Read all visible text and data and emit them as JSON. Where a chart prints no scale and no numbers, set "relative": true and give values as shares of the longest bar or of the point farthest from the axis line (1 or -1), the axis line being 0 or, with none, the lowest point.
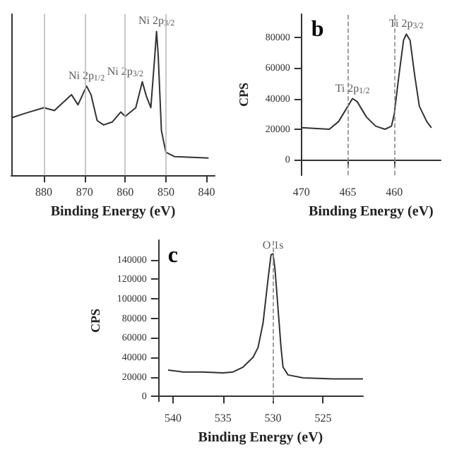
{
  "chart_data": [
    {
      "type": "line",
      "xlabel": "Binding Energy (eV)",
      "relative": true,
      "tick_labels": "x",
      "xlim": [
        888,
        838
      ],
      "xticks": [
        880,
        870,
        860,
        850,
        840
      ],
      "x": [
        887.9,
        884.7,
        880,
        877.4,
        873.2,
        871.6,
        869.5,
        868.4,
        866.9,
        865.3,
        863.2,
        861.1,
        860,
        857.4,
        855.8,
        854.8,
        853.7,
        852.7,
        852.3,
        851.9,
        851.1,
        850,
        847.9,
        839.5
      ],
      "series": [
        {
          "color": "#333333",
          "values": [
            0.4,
            0.43,
            0.47,
            0.45,
            0.56,
            0.49,
            0.62,
            0.56,
            0.38,
            0.35,
            0.37,
            0.44,
            0.41,
            0.47,
            0.65,
            0.55,
            0.47,
            0.84,
            1,
            0.84,
            0.31,
            0.16,
            0.13,
            0.12
          ]
        }
      ],
      "ref_lines": [
        {
          "axis": "x",
          "value": 880,
          "color": "#bbbbbb",
          "line_style": "solid"
        },
        {
          "axis": "x",
          "value": 870,
          "color": "#bbbbbb",
          "line_style": "solid"
        },
        {
          "axis": "x",
          "value": 860,
          "color": "#bbbbbb",
          "line_style": "solid"
        },
        {
          "axis": "x",
          "value": 850,
          "color": "#bbbbbb",
          "line_style": "solid"
        }
      ],
      "annotations": [
        {
          "text": "Ni 2p$_{1/2}$",
          "x": 869.5,
          "y": 0.62
        },
        {
          "text": "Ni 2p$_{3/2}$",
          "x": 855.8,
          "y": 0.65
        },
        {
          "text": "Ni 2p$_{3/2}$",
          "x": 852.3,
          "y": 1
        }
      ]
    },
    {
      "type": "line",
      "xlabel": "Binding Energy (eV)",
      "ylabel": "CPS",
      "xlim": [
        470,
        455
      ],
      "xticks": [
        470,
        465,
        460
      ],
      "ylim": [
        -10000,
        95000
      ],
      "yticks": [
        0,
        20000,
        40000,
        60000,
        80000
      ],
      "x": [
        470,
        467,
        466,
        465,
        464.5,
        464,
        463,
        462,
        461,
        460.3,
        460,
        459.5,
        459,
        458.7,
        458.3,
        457.8,
        457.3,
        456.5,
        456
      ],
      "series": [
        {
          "color": "#333333",
          "values": [
            21000,
            20000,
            25000,
            35000,
            40000,
            38000,
            28000,
            22000,
            20000,
            22000,
            30000,
            55000,
            78000,
            82000,
            78000,
            55000,
            35000,
            25000,
            21000
          ]
        }
      ],
      "ref_lines": [
        {
          "axis": "x",
          "value": 465,
          "color": "#888888",
          "line_style": "dashed"
        },
        {
          "axis": "x",
          "value": 460,
          "color": "#888888",
          "line_style": "dashed"
        }
      ],
      "annotations": [
        "b",
        {
          "text": "Ti 2p$_{1/2}$",
          "x": 464.5,
          "y": 40000
        },
        {
          "text": "Ti 2p$_{3/2}$",
          "x": 458.7,
          "y": 82000
        }
      ]
    },
    {
      "type": "line",
      "xlabel": "Binding Energy (eV)",
      "ylabel": "CPS",
      "xlim": [
        541.5,
        521
      ],
      "xticks": [
        540,
        535,
        530,
        525
      ],
      "ylim": [
        -5000,
        160000
      ],
      "yticks": [
        0,
        20000,
        40000,
        60000,
        80000,
        100000,
        120000,
        140000
      ],
      "x": [
        540.5,
        539,
        537,
        535,
        534,
        533,
        532,
        531.5,
        531,
        530.5,
        530.2,
        530,
        529.8,
        529.5,
        529.2,
        529,
        528.5,
        527,
        524,
        521
      ],
      "series": [
        {
          "color": "#333333",
          "values": [
            27000,
            25000,
            25000,
            24000,
            25000,
            30000,
            40000,
            50000,
            75000,
            120000,
            145000,
            146000,
            130000,
            90000,
            50000,
            30000,
            22000,
            19000,
            18000,
            18000
          ]
        }
      ],
      "ref_lines": [
        {
          "axis": "x",
          "value": 530,
          "color": "#888888",
          "line_style": "dashed"
        }
      ],
      "annotations": [
        "c",
        {
          "text": "O 1s",
          "x": 530,
          "y": 146000
        }
      ]
    }
  ]
}
